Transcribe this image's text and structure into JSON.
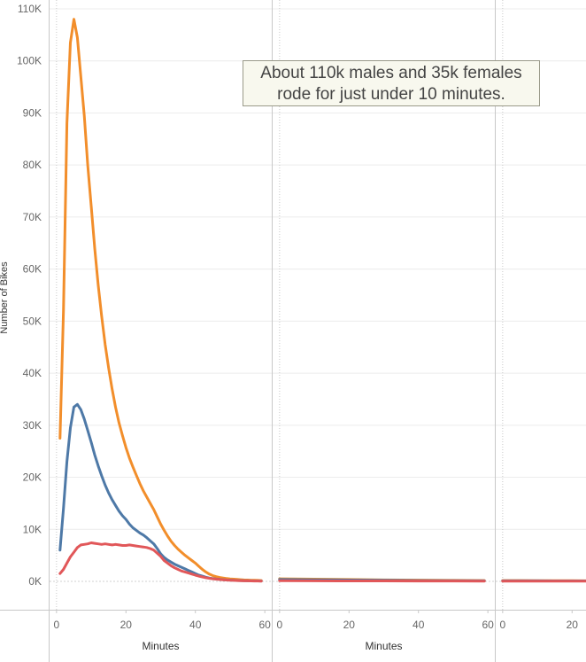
{
  "chart_data": {
    "type": "line",
    "ylabel": "Number of Bikes",
    "ylim": [
      0,
      110000
    ],
    "y_ticks": [
      {
        "value": 0,
        "label": "0K"
      },
      {
        "value": 10000,
        "label": "10K"
      },
      {
        "value": 20000,
        "label": "20K"
      },
      {
        "value": 30000,
        "label": "30K"
      },
      {
        "value": 40000,
        "label": "40K"
      },
      {
        "value": 50000,
        "label": "50K"
      },
      {
        "value": 60000,
        "label": "60K"
      },
      {
        "value": 70000,
        "label": "70K"
      },
      {
        "value": 80000,
        "label": "80K"
      },
      {
        "value": 90000,
        "label": "90K"
      },
      {
        "value": 100000,
        "label": "100K"
      },
      {
        "value": 110000,
        "label": "110K"
      }
    ],
    "grid": true,
    "annotation_lines": [
      "About 110k males and 35k females",
      "rode for just under 10 minutes."
    ],
    "panes": [
      {
        "xlabel": "Minutes",
        "xlim": [
          -2,
          62
        ],
        "x_ticks": [
          0,
          20,
          40,
          60
        ],
        "series": [
          {
            "color": "#f28e2b",
            "x": [
              1,
              2,
              3,
              4,
              5,
              6,
              7,
              8,
              9,
              10,
              11,
              12,
              13,
              14,
              15,
              16,
              17,
              18,
              19,
              20,
              21,
              22,
              23,
              24,
              25,
              26,
              27,
              28,
              29,
              30,
              31,
              32,
              33,
              34,
              35,
              36,
              37,
              38,
              39,
              40,
              41,
              42,
              43,
              44,
              45,
              46,
              47,
              48,
              49,
              50,
              51,
              52,
              53,
              54,
              55,
              56,
              57,
              58,
              59
            ],
            "y": [
              27500,
              52000,
              88000,
              103500,
              108000,
              104500,
              97000,
              89500,
              80000,
              72000,
              64000,
              57000,
              51000,
              45500,
              41000,
              37000,
              33500,
              30500,
              28000,
              25700,
              23700,
              22000,
              20400,
              18800,
              17400,
              16200,
              15000,
              13800,
              12400,
              11000,
              9800,
              8700,
              7700,
              6900,
              6200,
              5600,
              5000,
              4500,
              4000,
              3500,
              2900,
              2300,
              1800,
              1400,
              1100,
              900,
              750,
              650,
              550,
              480,
              420,
              370,
              320,
              280,
              250,
              220,
              200,
              180,
              160
            ]
          },
          {
            "color": "#4e79a7",
            "x": [
              1,
              2,
              3,
              4,
              5,
              6,
              7,
              8,
              9,
              10,
              11,
              12,
              13,
              14,
              15,
              16,
              17,
              18,
              19,
              20,
              21,
              22,
              23,
              24,
              25,
              26,
              27,
              28,
              29,
              30,
              31,
              32,
              33,
              34,
              35,
              36,
              37,
              38,
              39,
              40,
              41,
              42,
              43,
              44,
              45,
              46,
              47,
              48,
              49,
              50,
              51,
              52,
              53,
              54,
              55,
              56,
              57,
              58,
              59
            ],
            "y": [
              6000,
              14000,
              23000,
              29500,
              33500,
              34000,
              33000,
              31200,
              29000,
              26700,
              24300,
              22200,
              20300,
              18500,
              17000,
              15700,
              14600,
              13500,
              12600,
              11900,
              11000,
              10300,
              9800,
              9300,
              8900,
              8400,
              7800,
              7200,
              6300,
              5300,
              4600,
              4100,
              3700,
              3300,
              3000,
              2700,
              2400,
              2100,
              1800,
              1500,
              1200,
              1000,
              800,
              650,
              550,
              450,
              380,
              320,
              270,
              230,
              200,
              170,
              150,
              130,
              110,
              100,
              90,
              80,
              70
            ]
          },
          {
            "color": "#e15759",
            "x": [
              1,
              2,
              3,
              4,
              5,
              6,
              7,
              8,
              9,
              10,
              11,
              12,
              13,
              14,
              15,
              16,
              17,
              18,
              19,
              20,
              21,
              22,
              23,
              24,
              25,
              26,
              27,
              28,
              29,
              30,
              31,
              32,
              33,
              34,
              35,
              36,
              37,
              38,
              39,
              40,
              41,
              42,
              43,
              44,
              45,
              46,
              47,
              48,
              49,
              50,
              51,
              52,
              53,
              54,
              55,
              56,
              57,
              58,
              59
            ],
            "y": [
              1500,
              2300,
              3500,
              4700,
              5600,
              6500,
              7000,
              7100,
              7200,
              7400,
              7300,
              7200,
              7100,
              7200,
              7100,
              7000,
              7100,
              7000,
              6900,
              6900,
              7000,
              6900,
              6800,
              6700,
              6600,
              6500,
              6300,
              6000,
              5400,
              4800,
              4000,
              3500,
              3000,
              2600,
              2300,
              2000,
              1800,
              1600,
              1400,
              1200,
              1000,
              850,
              700,
              600,
              500,
              420,
              360,
              300,
              250,
              210,
              180,
              150,
              130,
              110,
              95,
              80,
              70,
              60,
              50
            ]
          }
        ]
      },
      {
        "xlabel": "Minutes",
        "xlim": [
          -2,
          62
        ],
        "x_ticks": [
          0,
          20,
          40,
          60
        ],
        "series": [
          {
            "color": "#f28e2b",
            "x": [
              0,
              10,
              20,
              30,
              40,
              50,
              59
            ],
            "y": [
              500,
              420,
              350,
              280,
              230,
              190,
              160
            ]
          },
          {
            "color": "#4e79a7",
            "x": [
              0,
              10,
              20,
              30,
              40,
              50,
              59
            ],
            "y": [
              350,
              300,
              250,
              200,
              160,
              130,
              110
            ]
          },
          {
            "color": "#e15759",
            "x": [
              0,
              10,
              20,
              30,
              40,
              50,
              59
            ],
            "y": [
              120,
              100,
              90,
              80,
              70,
              60,
              50
            ]
          }
        ]
      },
      {
        "xlabel": "",
        "xlim": [
          -2,
          62
        ],
        "x_ticks": [
          0,
          20
        ],
        "series": [
          {
            "color": "#f28e2b",
            "x": [
              0,
              5,
              10,
              15,
              20,
              25
            ],
            "y": [
              160,
              150,
              140,
              130,
              120,
              110
            ]
          },
          {
            "color": "#4e79a7",
            "x": [
              0,
              5,
              10,
              15,
              20,
              25
            ],
            "y": [
              110,
              100,
              95,
              90,
              85,
              80
            ]
          },
          {
            "color": "#e15759",
            "x": [
              0,
              5,
              10,
              15,
              20,
              25
            ],
            "y": [
              50,
              45,
              40,
              38,
              35,
              32
            ]
          }
        ]
      }
    ]
  }
}
